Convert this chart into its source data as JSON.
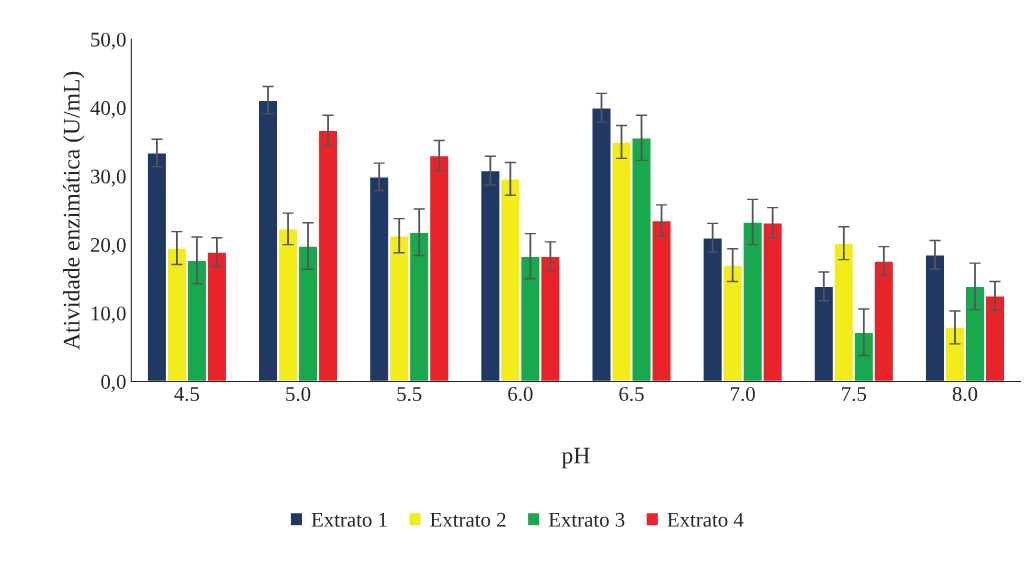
{
  "chart_data": {
    "type": "bar",
    "xlabel": "pH",
    "ylabel": "Atividade enzimática (U/mL)",
    "categories": [
      "4.5",
      "5.0",
      "5.5",
      "6.0",
      "6.5",
      "7.0",
      "7.5",
      "8.0"
    ],
    "series": [
      {
        "name": "Extrato 1",
        "color": "#1f3864",
        "values": [
          33.4,
          41.1,
          29.9,
          30.8,
          40.0,
          21.0,
          13.9,
          18.5
        ],
        "errors": [
          2.0,
          2.0,
          2.0,
          2.1,
          2.1,
          2.1,
          2.1,
          2.1
        ]
      },
      {
        "name": "Extrato 2",
        "color": "#f2ec1a",
        "values": [
          19.5,
          22.3,
          21.3,
          29.6,
          35.0,
          17.0,
          20.2,
          7.9
        ],
        "errors": [
          2.4,
          2.3,
          2.5,
          2.4,
          2.4,
          2.4,
          2.4,
          2.4
        ]
      },
      {
        "name": "Extrato 3",
        "color": "#18a84e",
        "values": [
          17.7,
          19.8,
          21.8,
          18.3,
          35.6,
          23.3,
          7.2,
          13.9
        ],
        "errors": [
          3.4,
          3.4,
          3.4,
          3.3,
          3.3,
          3.3,
          3.4,
          3.4
        ]
      },
      {
        "name": "Extrato 4",
        "color": "#e8232a",
        "values": [
          18.9,
          36.7,
          33.0,
          18.3,
          23.5,
          23.2,
          17.6,
          12.5
        ],
        "errors": [
          2.1,
          2.2,
          2.2,
          2.1,
          2.3,
          2.2,
          2.1,
          2.1
        ]
      }
    ],
    "ylim": [
      0,
      50
    ],
    "yticks": [
      {
        "value": 0,
        "label": "0,0"
      },
      {
        "value": 10,
        "label": "10,0"
      },
      {
        "value": 20,
        "label": "20,0"
      },
      {
        "value": 30,
        "label": "30,0"
      },
      {
        "value": 40,
        "label": "40,0"
      },
      {
        "value": 50,
        "label": "50,0"
      }
    ],
    "grid": false,
    "legend": "bottom"
  }
}
